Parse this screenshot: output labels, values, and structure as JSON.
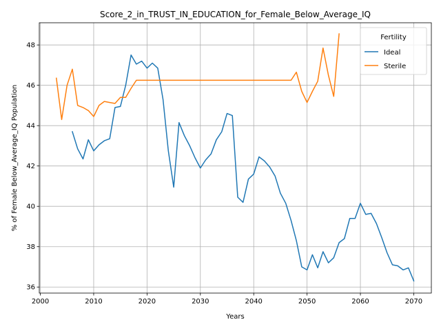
{
  "chart_data": {
    "type": "line",
    "title": "Score_2_in_TRUST_IN_EDUCATION_for_Female_Below_Average_IQ",
    "xlabel": "Years",
    "ylabel": "% of Female Below_Average_IQ Population",
    "xlim": [
      1999.8,
      2073.3
    ],
    "ylim": [
      35.7,
      49.1
    ],
    "xticks": [
      2000,
      2010,
      2020,
      2030,
      2040,
      2050,
      2060,
      2070
    ],
    "yticks": [
      36,
      38,
      40,
      42,
      44,
      46,
      48
    ],
    "grid": true,
    "legend": {
      "title": "Fertility",
      "position": "top-right"
    },
    "series": [
      {
        "name": "Ideal",
        "color": "#1f77b4",
        "x": [
          2006,
          2007,
          2008,
          2009,
          2010,
          2011,
          2012,
          2013,
          2014,
          2015,
          2016,
          2017,
          2018,
          2019,
          2020,
          2021,
          2022,
          2023,
          2024,
          2025,
          2026,
          2027,
          2028,
          2029,
          2030,
          2031,
          2032,
          2033,
          2034,
          2035,
          2036,
          2037,
          2038,
          2039,
          2040,
          2041,
          2042,
          2043,
          2044,
          2045,
          2046,
          2047,
          2048,
          2049,
          2050,
          2051,
          2052,
          2053,
          2054,
          2055,
          2056,
          2057,
          2058,
          2059,
          2060,
          2061,
          2062,
          2063,
          2064,
          2065,
          2066,
          2067,
          2068,
          2069,
          2070
        ],
        "values": [
          43.7,
          42.85,
          42.35,
          43.3,
          42.75,
          43.05,
          43.25,
          43.35,
          44.9,
          44.95,
          46.0,
          47.5,
          47.05,
          47.2,
          46.85,
          47.1,
          46.85,
          45.3,
          42.75,
          40.95,
          44.15,
          43.5,
          43.0,
          42.4,
          41.9,
          42.3,
          42.6,
          43.3,
          43.7,
          44.6,
          44.5,
          40.45,
          40.2,
          41.35,
          41.6,
          42.45,
          42.25,
          41.95,
          41.5,
          40.65,
          40.15,
          39.3,
          38.3,
          37.0,
          36.85,
          37.6,
          36.95,
          37.75,
          37.2,
          37.45,
          38.2,
          38.4,
          39.4,
          39.4,
          40.15,
          39.6,
          39.65,
          39.15,
          38.45,
          37.7,
          37.1,
          37.05,
          36.85,
          36.95,
          36.3
        ]
      },
      {
        "name": "Sterile",
        "color": "#ff7f0e",
        "x": [
          2003,
          2004,
          2005,
          2006,
          2007,
          2008,
          2009,
          2010,
          2011,
          2012,
          2013,
          2014,
          2015,
          2016,
          2017,
          2018,
          2019,
          2020,
          2021,
          2022,
          2023,
          2024,
          2025,
          2026,
          2027,
          2028,
          2029,
          2030,
          2031,
          2032,
          2033,
          2034,
          2035,
          2036,
          2037,
          2038,
          2039,
          2040,
          2041,
          2042,
          2043,
          2044,
          2045,
          2046,
          2047,
          2048,
          2049,
          2050,
          2051,
          2052,
          2053,
          2054,
          2055,
          2056
        ],
        "values": [
          46.35,
          44.3,
          46.0,
          46.8,
          45.0,
          44.9,
          44.75,
          44.45,
          45.0,
          45.2,
          45.15,
          45.1,
          45.4,
          45.4,
          45.85,
          46.25,
          46.25,
          46.25,
          46.25,
          46.25,
          46.25,
          46.25,
          46.25,
          46.25,
          46.25,
          46.25,
          46.25,
          46.25,
          46.25,
          46.25,
          46.25,
          46.25,
          46.25,
          46.25,
          46.25,
          46.25,
          46.25,
          46.25,
          46.25,
          46.25,
          46.25,
          46.25,
          46.25,
          46.25,
          46.25,
          46.65,
          45.7,
          45.15,
          45.7,
          46.2,
          47.85,
          46.5,
          45.45,
          48.55
        ]
      }
    ]
  }
}
